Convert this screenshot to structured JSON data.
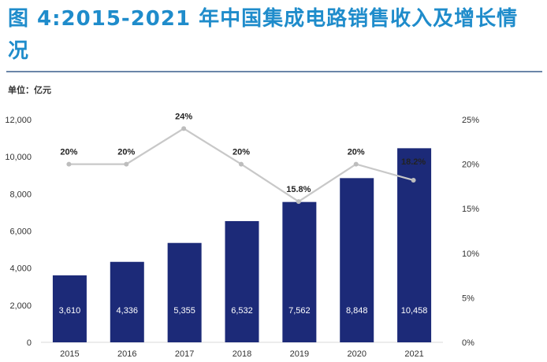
{
  "title": "图 4:2015-2021 年中国集成电路销售收入及增长情况",
  "unit_label": "单位：亿元",
  "chart_data": {
    "type": "bar",
    "categories": [
      "2015",
      "2016",
      "2017",
      "2018",
      "2019",
      "2020",
      "2021"
    ],
    "series": [
      {
        "kind": "bar",
        "values": [
          3610,
          4336,
          5355,
          6532,
          7562,
          8848,
          10458
        ],
        "labels": [
          "3,610",
          "4,336",
          "5,355",
          "6,532",
          "7,562",
          "8,848",
          "10,458"
        ],
        "color": "#1c2a78"
      },
      {
        "kind": "line",
        "axis": "right",
        "values": [
          20,
          20,
          24,
          20,
          15.8,
          20,
          18.2
        ],
        "labels": [
          "20%",
          "20%",
          "24%",
          "20%",
          "15.8%",
          "20%",
          "18.2%"
        ],
        "color": "#c8c8c8"
      }
    ],
    "ylim_left": [
      0,
      12000
    ],
    "yticks_left": [
      "0",
      "2,000",
      "4,000",
      "6,000",
      "8,000",
      "10,000",
      "12,000"
    ],
    "ylim_right": [
      0,
      25
    ],
    "yticks_right": [
      "0%",
      "5%",
      "10%",
      "15%",
      "20%",
      "25%"
    ],
    "grid": false
  }
}
